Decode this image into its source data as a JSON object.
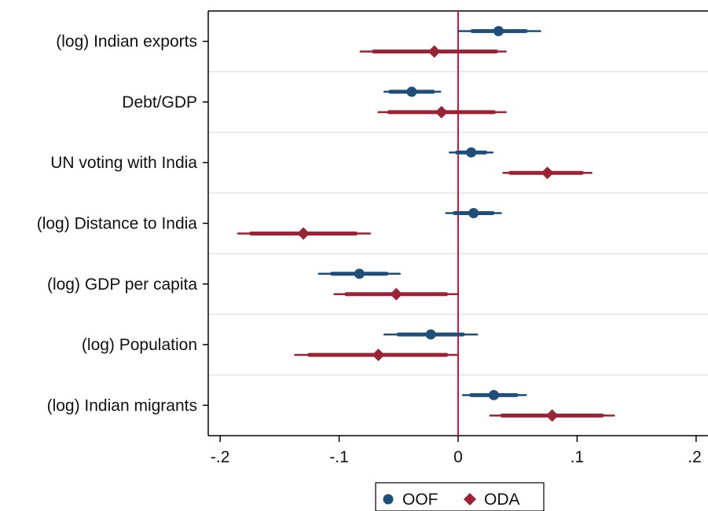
{
  "chart_data": {
    "type": "coefficient-plot",
    "orientation": "horizontal",
    "title": "",
    "xlabel": "",
    "ylabel": "",
    "xlim": [
      -0.21,
      0.21
    ],
    "xticks": [
      -0.2,
      -0.1,
      0,
      0.1,
      0.2
    ],
    "xtick_labels": [
      "-.2",
      "-.1",
      "0",
      ".1",
      ".2"
    ],
    "reference_line": {
      "x": 0,
      "color": "#d6143c"
    },
    "grid": "horizontal",
    "legend": {
      "position": "bottom",
      "entries": [
        "OOF",
        "ODA"
      ]
    },
    "categories": [
      "(log) Indian exports",
      "Debt/GDP",
      "UN voting with India",
      "(log) Distance to India",
      "(log) GDP per capita",
      "(log) Population",
      "(log) Indian migrants"
    ],
    "series": [
      {
        "name": "OOF",
        "marker": "circle",
        "color": "#1f4e79",
        "estimates": [
          0.034,
          -0.039,
          0.011,
          0.013,
          -0.083,
          -0.023,
          0.03
        ],
        "ci90": [
          [
            0.012,
            0.057
          ],
          [
            -0.057,
            -0.021
          ],
          [
            -0.001,
            0.023
          ],
          [
            -0.003,
            0.029
          ],
          [
            -0.106,
            -0.06
          ],
          [
            -0.05,
            0.004
          ],
          [
            0.011,
            0.049
          ]
        ],
        "ci95": [
          [
            0.0,
            0.069
          ],
          [
            -0.062,
            -0.015
          ],
          [
            -0.007,
            0.029
          ],
          [
            -0.01,
            0.036
          ],
          [
            -0.117,
            -0.049
          ],
          [
            -0.062,
            0.016
          ],
          [
            0.004,
            0.057
          ]
        ]
      },
      {
        "name": "ODA",
        "marker": "diamond",
        "color": "#9b2335",
        "estimates": [
          -0.02,
          -0.014,
          0.075,
          -0.13,
          -0.052,
          -0.067,
          0.079
        ],
        "ci90": [
          [
            -0.071,
            0.032
          ],
          [
            -0.058,
            0.03
          ],
          [
            0.044,
            0.104
          ],
          [
            -0.174,
            -0.086
          ],
          [
            -0.094,
            -0.01
          ],
          [
            -0.125,
            -0.01
          ],
          [
            0.037,
            0.121
          ]
        ],
        "ci95": [
          [
            -0.082,
            0.04
          ],
          [
            -0.067,
            0.04
          ],
          [
            0.038,
            0.112
          ],
          [
            -0.185,
            -0.074
          ],
          [
            -0.104,
            0.0
          ],
          [
            -0.137,
            0.0
          ],
          [
            0.027,
            0.131
          ]
        ]
      }
    ]
  }
}
